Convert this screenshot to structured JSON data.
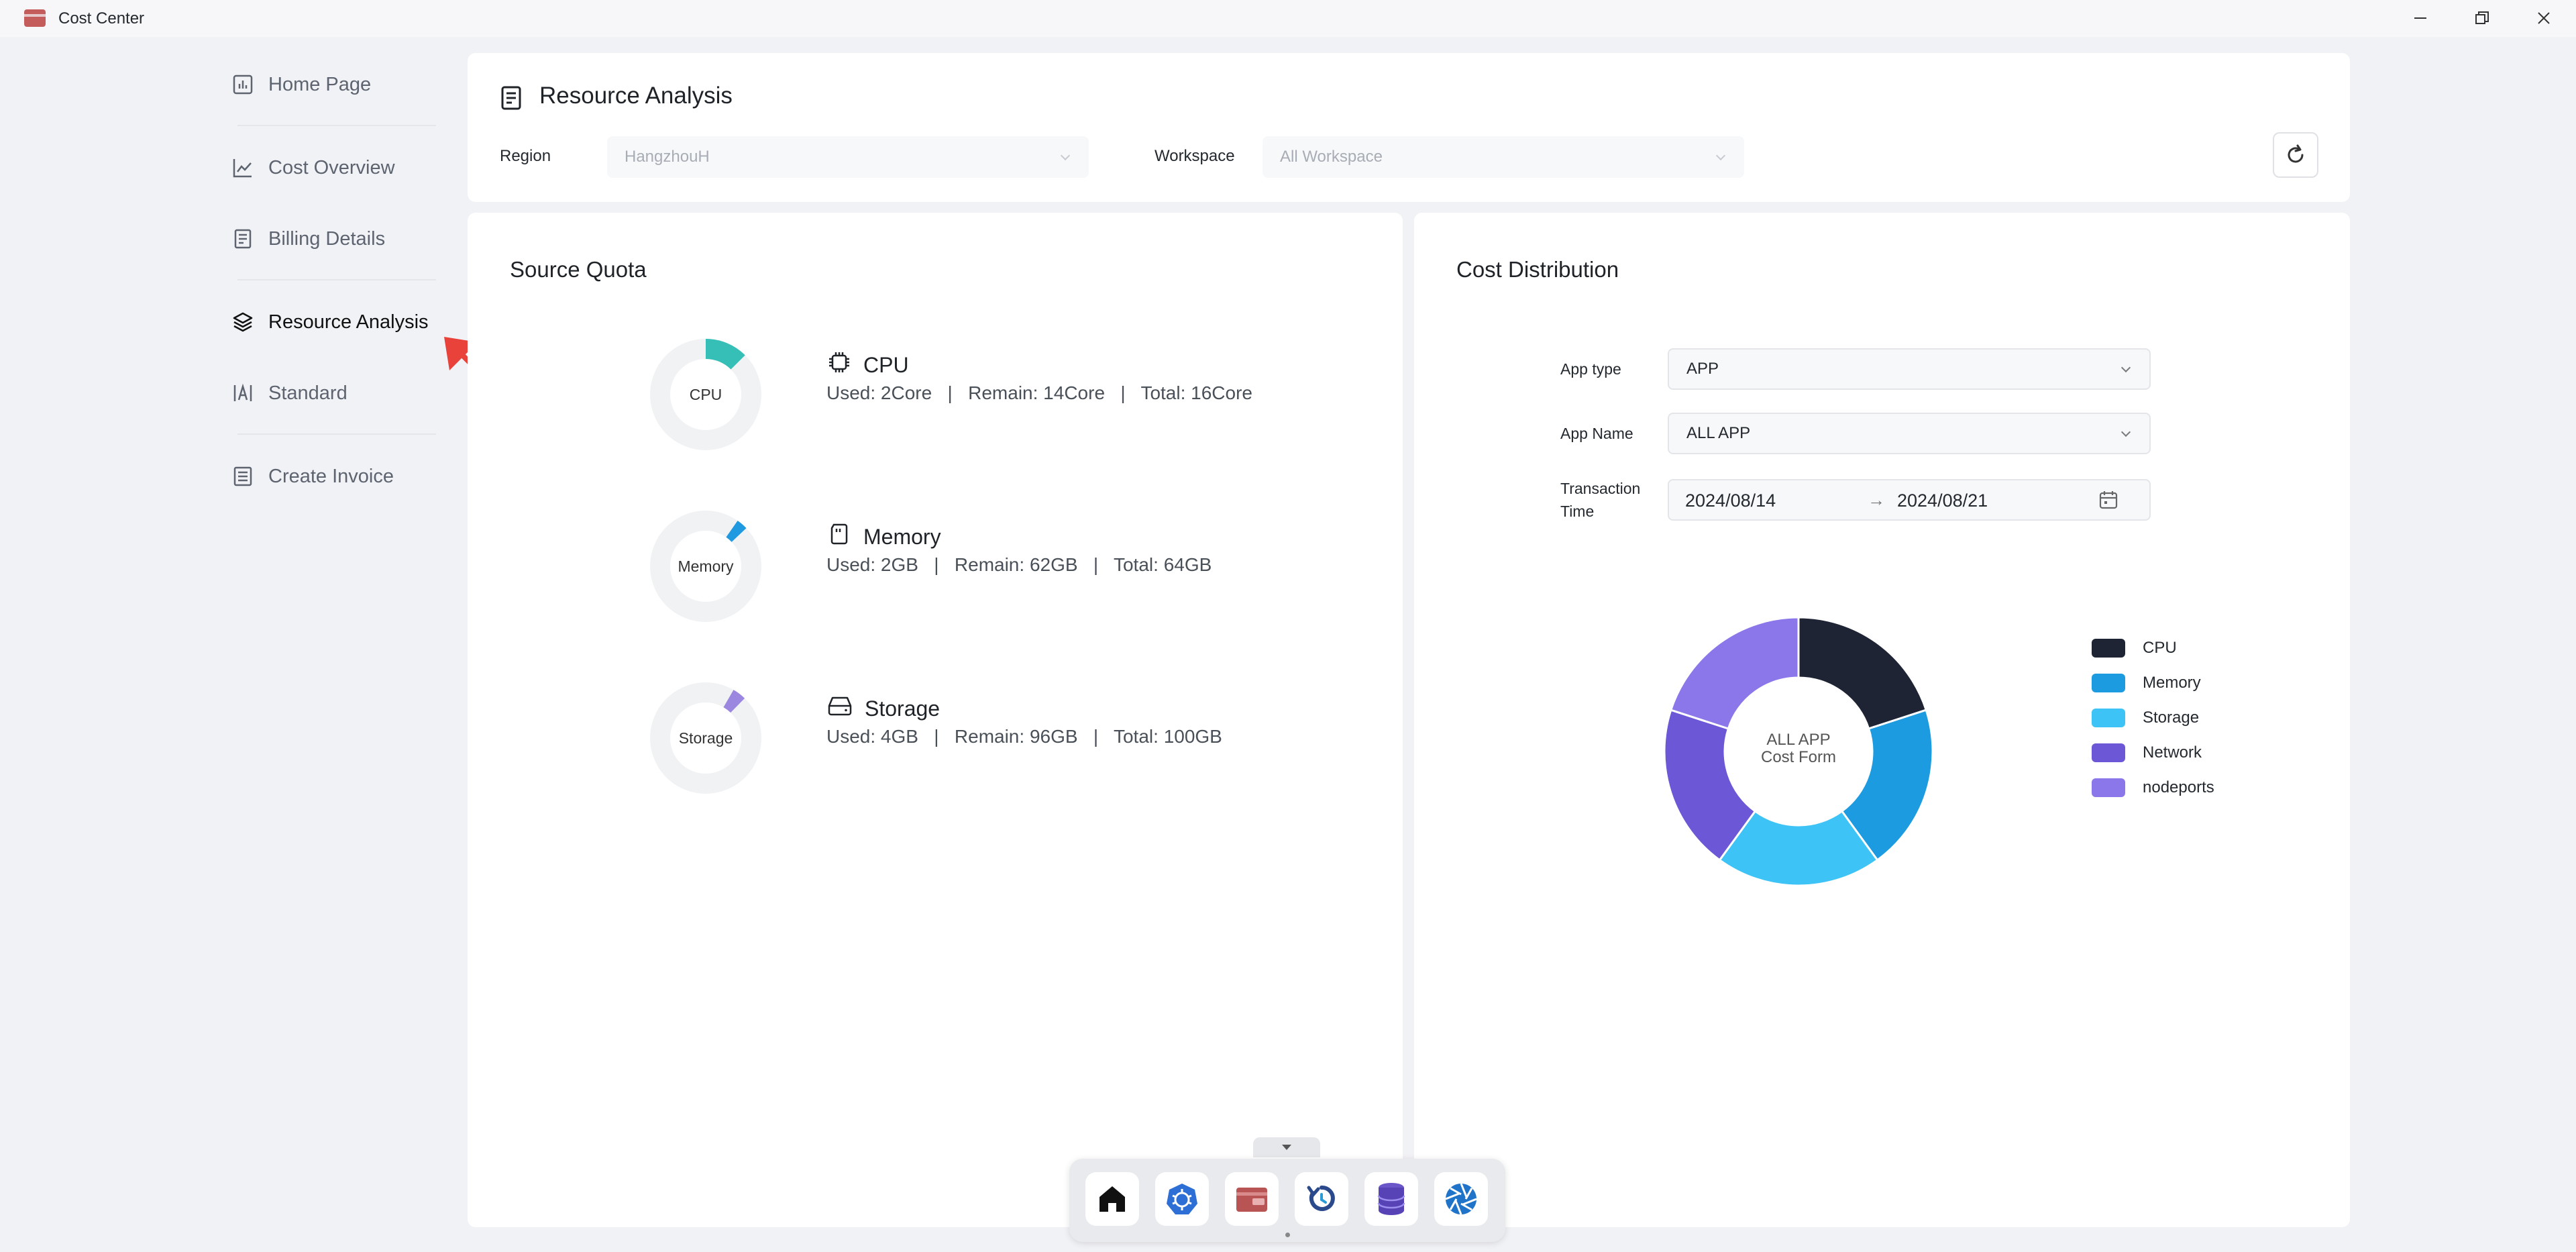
{
  "window": {
    "title": "Cost Center",
    "controls": [
      "minimize",
      "restore",
      "close"
    ]
  },
  "sidebar": {
    "items": [
      {
        "label": "Home Page",
        "icon": "bar-chart-icon"
      },
      {
        "label": "Cost Overview",
        "icon": "line-chart-icon"
      },
      {
        "label": "Billing Details",
        "icon": "receipt-icon"
      },
      {
        "label": "Resource Analysis",
        "icon": "layers-icon",
        "active": true
      },
      {
        "label": "Standard",
        "icon": "text-standard-icon"
      },
      {
        "label": "Create Invoice",
        "icon": "invoice-icon"
      }
    ]
  },
  "header": {
    "title": "Resource Analysis",
    "region_label": "Region",
    "region_value": "HangzhouH",
    "workspace_label": "Workspace",
    "workspace_value": "All Workspace"
  },
  "source_quota": {
    "title": "Source Quota",
    "items": [
      {
        "ring_label": "CPU",
        "name": "CPU",
        "detail": "Used: 2Core   |   Remain: 14Core   |   Total: 16Core",
        "used_fraction": 0.125,
        "color": "#36bfb6"
      },
      {
        "ring_label": "Memory",
        "name": "Memory",
        "detail": "Used: 2GB   |   Remain: 62GB   |   Total: 64GB",
        "used_fraction": 0.031,
        "color": "#1f9ae0"
      },
      {
        "ring_label": "Storage",
        "name": "Storage",
        "detail": "Used: 4GB   |   Remain: 96GB   |   Total: 100GB",
        "used_fraction": 0.04,
        "color": "#9b87e0"
      }
    ]
  },
  "cost_distribution": {
    "title": "Cost Distribution",
    "app_type_label": "App type",
    "app_type_value": "APP",
    "app_name_label": "App Name",
    "app_name_value": "ALL APP",
    "transaction_label_line1": "Transaction",
    "transaction_label_line2": "Time",
    "start_date": "2024/08/14",
    "end_date": "2024/08/21",
    "center_line1": "ALL APP",
    "center_line2": "Cost Form"
  },
  "chart_data": {
    "type": "pie",
    "categories": [
      "CPU",
      "Memory",
      "Storage",
      "Network",
      "nodeports"
    ],
    "values": [
      20,
      20,
      20,
      20,
      20
    ],
    "colors": [
      "#1e2433",
      "#1d9be0",
      "#3ec3f7",
      "#6c58d6",
      "#8b77ea"
    ],
    "legend_position": "right"
  },
  "dock": {
    "apps": [
      "home-icon",
      "kubernetes-icon",
      "wallet-icon",
      "backup-icon",
      "database-icon",
      "aperture-icon"
    ]
  }
}
